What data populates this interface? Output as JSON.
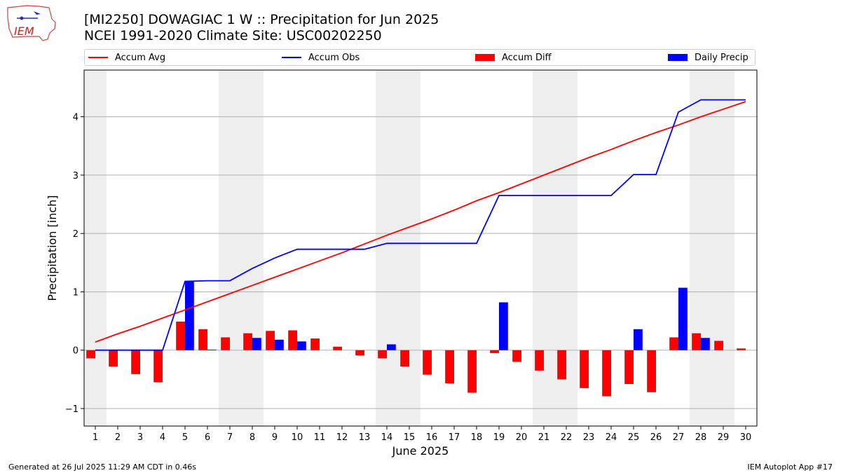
{
  "header": {
    "title_line1": "[MI2250] DOWAGIAC 1 W :: Precipitation for Jun 2025",
    "title_line2": "NCEI 1991-2020 Climate Site: USC00202250",
    "logo_text": "IEM"
  },
  "footer": {
    "generated": "Generated at 26 Jul 2025 11:29 AM CDT in 0.46s",
    "app": "IEM Autoplot App #17"
  },
  "legend": {
    "placement": "top",
    "items": [
      {
        "label": "Accum Avg",
        "kind": "line",
        "color": "#ff0000"
      },
      {
        "label": "Accum Obs",
        "kind": "line",
        "color": "#0000ff"
      },
      {
        "label": "Accum Diff",
        "kind": "bar",
        "color": "#ff0000"
      },
      {
        "label": "Daily Precip",
        "kind": "bar",
        "color": "#0000ff"
      }
    ]
  },
  "chart_data": {
    "type": "bar",
    "xlabel": "June 2025",
    "ylabel": "Precipitation [inch]",
    "ylim": [
      -1.3,
      4.8
    ],
    "xlim": [
      0.5,
      30.5
    ],
    "yticks": [
      -1,
      0,
      1,
      2,
      3,
      4
    ],
    "ytick_labels": [
      "−1",
      "0",
      "1",
      "2",
      "3",
      "4"
    ],
    "grid": "horizontal",
    "weekend_days": [
      1,
      7,
      8,
      14,
      15,
      21,
      22,
      28,
      29
    ],
    "weekend_color": "#eeeeee",
    "days": [
      1,
      2,
      3,
      4,
      5,
      6,
      7,
      8,
      9,
      10,
      11,
      12,
      13,
      14,
      15,
      16,
      17,
      18,
      19,
      20,
      21,
      22,
      23,
      24,
      25,
      26,
      27,
      28,
      29,
      30
    ],
    "series": [
      {
        "name": "Accum Avg",
        "type": "line",
        "color": "#ff0000",
        "values": [
          0.14,
          0.28,
          0.41,
          0.55,
          0.69,
          0.83,
          0.97,
          1.11,
          1.25,
          1.39,
          1.53,
          1.67,
          1.82,
          1.97,
          2.11,
          2.25,
          2.4,
          2.56,
          2.7,
          2.85,
          3.0,
          3.15,
          3.3,
          3.44,
          3.59,
          3.73,
          3.86,
          4.0,
          4.13,
          4.26
        ]
      },
      {
        "name": "Accum Obs",
        "type": "line",
        "color": "#0000ff",
        "values": [
          0.0,
          0.0,
          0.0,
          0.0,
          1.18,
          1.19,
          1.19,
          1.4,
          1.58,
          1.73,
          1.73,
          1.73,
          1.73,
          1.83,
          1.83,
          1.83,
          1.83,
          1.83,
          2.65,
          2.65,
          2.65,
          2.65,
          2.65,
          2.65,
          3.01,
          3.01,
          4.08,
          4.29,
          4.29,
          4.29
        ]
      },
      {
        "name": "Accum Diff",
        "type": "bar",
        "color": "#ff0000",
        "values": [
          -0.14,
          -0.28,
          -0.41,
          -0.55,
          0.49,
          0.36,
          0.22,
          0.29,
          0.33,
          0.34,
          0.2,
          0.06,
          -0.09,
          -0.14,
          -0.28,
          -0.42,
          -0.57,
          -0.73,
          -0.05,
          -0.2,
          -0.35,
          -0.5,
          -0.65,
          -0.79,
          -0.58,
          -0.72,
          0.22,
          0.29,
          0.16,
          0.03
        ]
      },
      {
        "name": "Daily Precip",
        "type": "bar",
        "color": "#0000ff",
        "values": [
          0,
          0,
          0,
          0,
          1.18,
          0.01,
          0,
          0.21,
          0.18,
          0.15,
          0,
          0,
          0,
          0.1,
          0,
          0,
          0,
          0,
          0.82,
          0,
          0,
          0,
          0,
          0,
          0.36,
          0,
          1.07,
          0.21,
          0,
          0
        ]
      }
    ]
  }
}
